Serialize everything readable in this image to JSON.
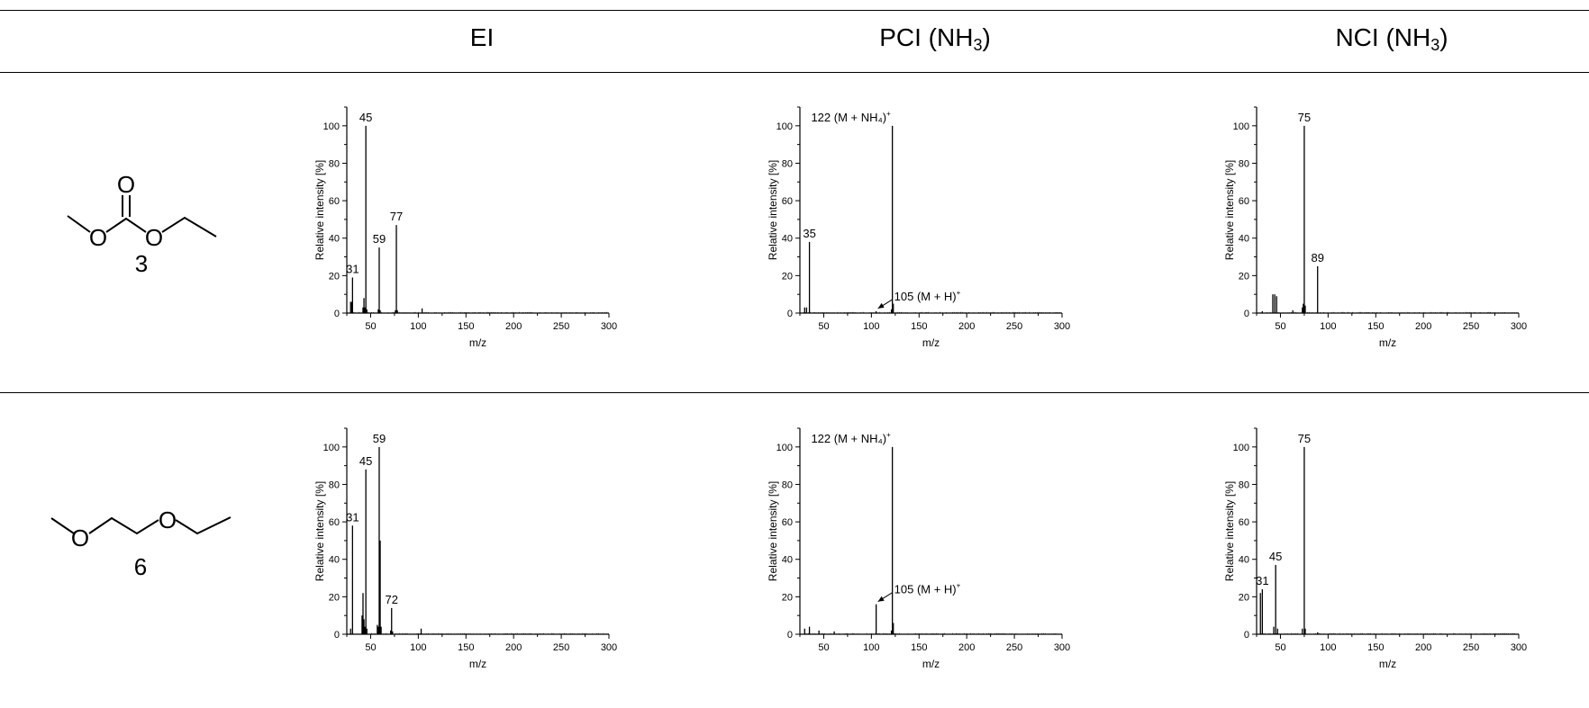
{
  "table": {
    "headers": [
      {
        "base": "EI",
        "sub": "",
        "tail": ""
      },
      {
        "base": "PCI (NH",
        "sub": "3",
        "tail": ")"
      },
      {
        "base": "NCI (NH",
        "sub": "3",
        "tail": ")"
      }
    ],
    "compounds": [
      {
        "number": "3",
        "atom_labels": [
          "O",
          "O",
          "O"
        ]
      },
      {
        "number": "6",
        "atom_labels": [
          "O",
          "O"
        ]
      }
    ]
  },
  "chart_data": [
    {
      "type": "bar",
      "row": 0,
      "col": 0,
      "xlabel": "m/z",
      "ylabel": "Relative intensity [%]",
      "xlim": [
        25,
        300
      ],
      "ylim": [
        0,
        110
      ],
      "xticks": [
        50,
        100,
        150,
        200,
        250,
        300
      ],
      "yticks": [
        0,
        20,
        40,
        60,
        80,
        100
      ],
      "peaks": [
        [
          29,
          6
        ],
        [
          30,
          6
        ],
        [
          31,
          19
        ],
        [
          42,
          3
        ],
        [
          43,
          8
        ],
        [
          44,
          3
        ],
        [
          45,
          100
        ],
        [
          46,
          2
        ],
        [
          58,
          2
        ],
        [
          59,
          35
        ],
        [
          60,
          1.5
        ],
        [
          76,
          1.5
        ],
        [
          77,
          47
        ],
        [
          78,
          1.5
        ],
        [
          104,
          2.5
        ]
      ],
      "annotations": [
        {
          "text": "31",
          "sup": "",
          "x": 31,
          "y": 19
        },
        {
          "text": "45",
          "sup": "",
          "x": 45,
          "y": 100
        },
        {
          "text": "59",
          "sup": "",
          "x": 59,
          "y": 35
        },
        {
          "text": "77",
          "sup": "",
          "x": 77,
          "y": 47
        }
      ]
    },
    {
      "type": "bar",
      "row": 0,
      "col": 1,
      "xlabel": "m/z",
      "ylabel": "Relative intensity [%]",
      "xlim": [
        25,
        300
      ],
      "ylim": [
        0,
        110
      ],
      "xticks": [
        50,
        100,
        150,
        200,
        250,
        300
      ],
      "yticks": [
        0,
        20,
        40,
        60,
        80,
        100
      ],
      "peaks": [
        [
          30,
          3
        ],
        [
          32,
          3
        ],
        [
          35,
          38
        ],
        [
          105,
          1
        ],
        [
          121,
          2
        ],
        [
          122,
          100
        ],
        [
          123,
          5
        ]
      ],
      "annotations": [
        {
          "text": "35",
          "sup": "",
          "x": 35,
          "y": 38
        },
        {
          "text": "122 (M + NH₄)",
          "sup": "+",
          "x": 122,
          "y": 100
        }
      ],
      "arrow_label": {
        "text": "105 (M + H)",
        "sup": "+",
        "x": 105,
        "y": 1
      }
    },
    {
      "type": "bar",
      "row": 0,
      "col": 2,
      "xlabel": "m/z",
      "ylabel": "Relative intensity [%]",
      "xlim": [
        25,
        300
      ],
      "ylim": [
        0,
        110
      ],
      "xticks": [
        50,
        100,
        150,
        200,
        250,
        300
      ],
      "yticks": [
        0,
        20,
        40,
        60,
        80,
        100
      ],
      "peaks": [
        [
          31,
          1
        ],
        [
          42,
          10
        ],
        [
          44,
          10
        ],
        [
          46,
          9
        ],
        [
          63,
          1.5
        ],
        [
          73,
          3
        ],
        [
          74,
          5
        ],
        [
          75,
          100
        ],
        [
          76,
          4
        ],
        [
          89,
          25
        ]
      ],
      "annotations": [
        {
          "text": "75",
          "sup": "",
          "x": 75,
          "y": 100
        },
        {
          "text": "89",
          "sup": "",
          "x": 89,
          "y": 25
        }
      ]
    },
    {
      "type": "bar",
      "row": 1,
      "col": 0,
      "xlabel": "m/z",
      "ylabel": "Relative intensity [%]",
      "xlim": [
        25,
        300
      ],
      "ylim": [
        0,
        110
      ],
      "xticks": [
        50,
        100,
        150,
        200,
        250,
        300
      ],
      "yticks": [
        0,
        20,
        40,
        60,
        80,
        100
      ],
      "peaks": [
        [
          29,
          3
        ],
        [
          31,
          58
        ],
        [
          41,
          10
        ],
        [
          42,
          22
        ],
        [
          43,
          8
        ],
        [
          44,
          4
        ],
        [
          45,
          88
        ],
        [
          46,
          3
        ],
        [
          57,
          5
        ],
        [
          58,
          4
        ],
        [
          59,
          100
        ],
        [
          60,
          50
        ],
        [
          61,
          4
        ],
        [
          71,
          2
        ],
        [
          72,
          14
        ],
        [
          73,
          1.5
        ],
        [
          103,
          3
        ]
      ],
      "annotations": [
        {
          "text": "31",
          "sup": "",
          "x": 31,
          "y": 58
        },
        {
          "text": "45",
          "sup": "",
          "x": 45,
          "y": 88
        },
        {
          "text": "59",
          "sup": "",
          "x": 59,
          "y": 100
        },
        {
          "text": "72",
          "sup": "",
          "x": 72,
          "y": 14
        }
      ]
    },
    {
      "type": "bar",
      "row": 1,
      "col": 1,
      "xlabel": "m/z",
      "ylabel": "Relative intensity [%]",
      "xlim": [
        25,
        300
      ],
      "ylim": [
        0,
        110
      ],
      "xticks": [
        50,
        100,
        150,
        200,
        250,
        300
      ],
      "yticks": [
        0,
        20,
        40,
        60,
        80,
        100
      ],
      "peaks": [
        [
          30,
          3
        ],
        [
          35,
          4
        ],
        [
          45,
          2
        ],
        [
          61,
          1.5
        ],
        [
          105,
          16
        ],
        [
          121,
          2
        ],
        [
          122,
          100
        ],
        [
          123,
          6
        ]
      ],
      "annotations": [
        {
          "text": "122 (M + NH₄)",
          "sup": "+",
          "x": 122,
          "y": 100
        }
      ],
      "arrow_label": {
        "text": "105 (M + H)",
        "sup": "+",
        "x": 105,
        "y": 16
      }
    },
    {
      "type": "bar",
      "row": 1,
      "col": 2,
      "xlabel": "m/z",
      "ylabel": "Relative intensity [%]",
      "xlim": [
        25,
        300
      ],
      "ylim": [
        0,
        110
      ],
      "xticks": [
        50,
        100,
        150,
        200,
        250,
        300
      ],
      "yticks": [
        0,
        20,
        40,
        60,
        80,
        100
      ],
      "peaks": [
        [
          29,
          22
        ],
        [
          31,
          24
        ],
        [
          43,
          4
        ],
        [
          45,
          37
        ],
        [
          47,
          3
        ],
        [
          73,
          3
        ],
        [
          75,
          100
        ],
        [
          76,
          3
        ],
        [
          89,
          1
        ]
      ],
      "annotations": [
        {
          "text": "31",
          "sup": "",
          "x": 31,
          "y": 24
        },
        {
          "text": "45",
          "sup": "",
          "x": 45,
          "y": 37
        },
        {
          "text": "75",
          "sup": "",
          "x": 75,
          "y": 100
        }
      ]
    }
  ]
}
